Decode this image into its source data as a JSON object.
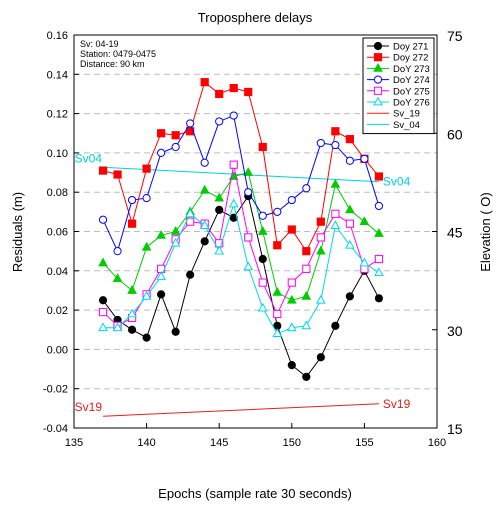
{
  "chart_data": {
    "type": "line",
    "title": "Troposphere delays",
    "xlabel": "Epochs (sample rate 30 seconds)",
    "ylabel": "Residuals (m)",
    "y2label": "Elevation ( O)",
    "xlim": [
      135,
      160
    ],
    "ylim": [
      -0.04,
      0.16
    ],
    "y2lim": [
      15,
      75
    ],
    "xticks": [
      "135",
      "140",
      "145",
      "150",
      "155",
      "160"
    ],
    "yticks": [
      "-0.04",
      "-0.02",
      "0.00",
      "0.02",
      "0.04",
      "0.06",
      "0.08",
      "0.10",
      "0.12",
      "0.14",
      "0.16"
    ],
    "y2ticks": [
      "15",
      "30",
      "45",
      "60",
      "75"
    ],
    "grid": "horizontal-dashed",
    "legend_position": "top-right",
    "notes": [
      "Sv: 04-19",
      "Station: 0479-0475",
      "Distance: 90 km"
    ],
    "x": [
      137,
      138,
      139,
      140,
      141,
      142,
      143,
      144,
      145,
      146,
      147,
      148,
      149,
      150,
      151,
      152,
      153,
      154,
      155,
      156
    ],
    "series": [
      {
        "name": "Doy 271",
        "color": "#000000",
        "marker": "filled-circle",
        "values": [
          0.025,
          0.015,
          0.01,
          0.006,
          0.028,
          0.009,
          0.038,
          0.055,
          0.071,
          0.067,
          0.078,
          0.046,
          0.012,
          -0.008,
          -0.014,
          -0.004,
          0.012,
          0.027,
          0.04,
          0.026
        ]
      },
      {
        "name": "Doy 272",
        "color": "#ff0000",
        "marker": "filled-square",
        "values": [
          0.091,
          0.089,
          0.064,
          0.092,
          0.11,
          0.109,
          0.111,
          0.136,
          0.13,
          0.133,
          0.131,
          0.103,
          0.053,
          0.061,
          0.05,
          0.065,
          0.111,
          0.107,
          0.097,
          0.088
        ]
      },
      {
        "name": "DoY 273",
        "color": "#00cc00",
        "marker": "filled-triangle",
        "values": [
          0.044,
          0.036,
          0.03,
          0.052,
          0.058,
          0.06,
          0.07,
          0.081,
          0.077,
          0.088,
          0.09,
          0.06,
          0.029,
          0.025,
          0.027,
          0.05,
          0.084,
          0.071,
          0.065,
          0.059
        ]
      },
      {
        "name": "DoY 274",
        "color": "#0000ff",
        "marker": "open-circle",
        "values": [
          0.066,
          0.05,
          0.076,
          0.077,
          0.1,
          0.103,
          0.115,
          0.095,
          0.116,
          0.119,
          0.08,
          0.068,
          0.07,
          0.076,
          0.082,
          0.105,
          0.104,
          0.096,
          0.097,
          0.073
        ]
      },
      {
        "name": "DoY 275",
        "color": "#ff00ff",
        "marker": "open-square",
        "values": [
          0.019,
          0.012,
          0.016,
          0.028,
          0.041,
          0.056,
          0.065,
          0.064,
          0.054,
          0.094,
          0.057,
          0.034,
          0.018,
          0.034,
          0.041,
          0.057,
          0.069,
          0.064,
          0.041,
          0.046
        ]
      },
      {
        "name": "DoY 276",
        "color": "#00d8e8",
        "marker": "open-triangle",
        "values": [
          0.011,
          0.011,
          0.018,
          0.027,
          0.037,
          0.054,
          0.069,
          0.063,
          0.05,
          0.074,
          0.042,
          0.021,
          0.008,
          0.011,
          0.012,
          0.025,
          0.063,
          0.053,
          0.044,
          0.039
        ]
      }
    ],
    "elevation_lines": [
      {
        "name": "Sv_19",
        "label": "Sv19",
        "color": "#e02020",
        "x": [
          137,
          156
        ],
        "values": [
          16.8,
          18.7
        ]
      },
      {
        "name": "Sv_04",
        "label": "Sv04",
        "color": "#00d0e0",
        "x": [
          137,
          156
        ],
        "values": [
          54.8,
          52.6
        ]
      }
    ]
  }
}
